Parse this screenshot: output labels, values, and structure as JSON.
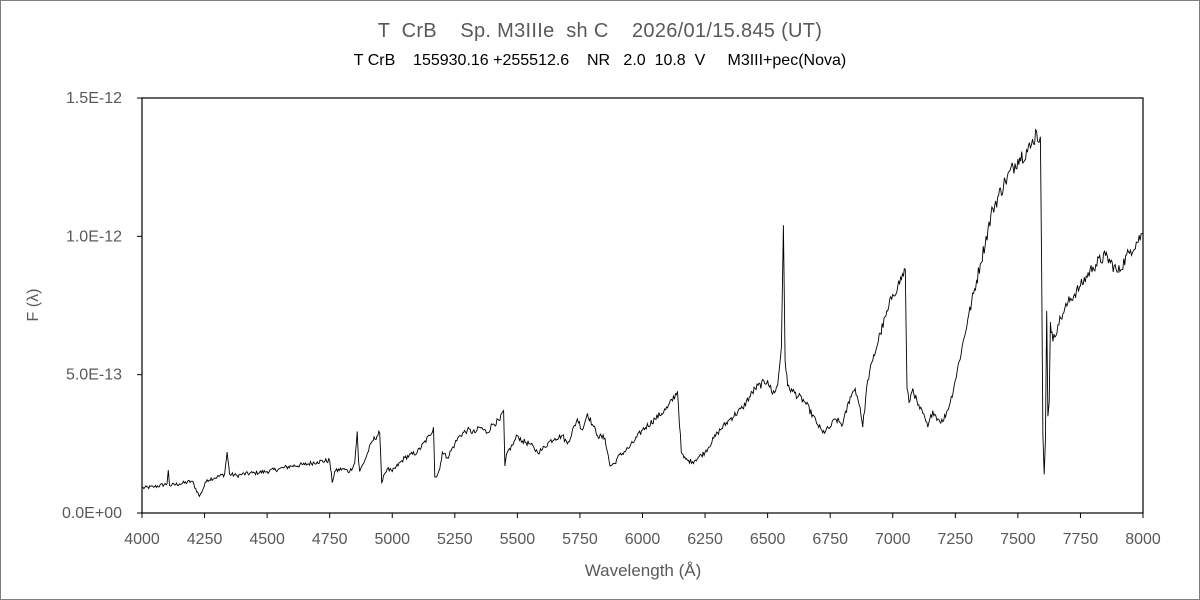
{
  "chart_data": {
    "type": "line",
    "title": "T  CrB    Sp. M3IIIe  sh C    2026/01/15.845 (UT)",
    "subtitle": "T CrB    155930.16 +255512.6    NR   2.0  10.8  V     M3III+pec(Nova)",
    "xlabel": "Wavelength (Å)",
    "ylabel": "F (λ)",
    "xlim": [
      4000,
      8000
    ],
    "ylim": [
      0,
      1.5e-12
    ],
    "x_ticks": [
      4000,
      4250,
      4500,
      4750,
      5000,
      5250,
      5500,
      5750,
      6000,
      6250,
      6500,
      6750,
      7000,
      7250,
      7500,
      7750,
      8000
    ],
    "x_tick_labels": [
      "4000",
      "4250",
      "4500",
      "4750",
      "5000",
      "5250",
      "5500",
      "5750",
      "6000",
      "6250",
      "6500",
      "6750",
      "7000",
      "7250",
      "7500",
      "7750",
      "8000"
    ],
    "y_ticks": [
      0,
      5e-13,
      1e-12,
      1.5e-12
    ],
    "y_tick_labels": [
      "0.0E+00",
      "5.0E-13",
      "1.0E-12",
      "1.5E-12"
    ],
    "grid": false,
    "legend": "none",
    "series": [
      {
        "color": "#000000",
        "x": [
          4000,
          4050,
          4100,
          4105,
          4110,
          4150,
          4200,
          4230,
          4260,
          4300,
          4330,
          4340,
          4350,
          4380,
          4400,
          4450,
          4500,
          4550,
          4600,
          4650,
          4700,
          4750,
          4760,
          4770,
          4800,
          4830,
          4850,
          4860,
          4865,
          4870,
          4890,
          4920,
          4950,
          4958,
          4965,
          4980,
          5000,
          5050,
          5100,
          5150,
          5165,
          5170,
          5175,
          5190,
          5200,
          5220,
          5250,
          5270,
          5300,
          5330,
          5350,
          5380,
          5400,
          5430,
          5445,
          5450,
          5460,
          5480,
          5500,
          5520,
          5550,
          5580,
          5600,
          5630,
          5650,
          5680,
          5700,
          5740,
          5760,
          5780,
          5800,
          5820,
          5850,
          5870,
          5890,
          5900,
          5950,
          6000,
          6050,
          6100,
          6140,
          6155,
          6165,
          6180,
          6200,
          6250,
          6300,
          6350,
          6400,
          6450,
          6500,
          6520,
          6540,
          6555,
          6563,
          6570,
          6580,
          6600,
          6650,
          6700,
          6720,
          6750,
          6770,
          6800,
          6830,
          6850,
          6870,
          6880,
          6900,
          6920,
          6950,
          6980,
          7000,
          7020,
          7050,
          7057,
          7065,
          7080,
          7100,
          7120,
          7140,
          7160,
          7180,
          7200,
          7230,
          7250,
          7300,
          7350,
          7400,
          7450,
          7500,
          7550,
          7575,
          7585,
          7590,
          7595,
          7600,
          7605,
          7610,
          7615,
          7620,
          7625,
          7630,
          7640,
          7660,
          7680,
          7700,
          7750,
          7800,
          7850,
          7900,
          7950,
          8000
        ],
        "y": [
          9e-14,
          9.5e-14,
          1.05e-13,
          1.55e-13,
          1e-13,
          1.05e-13,
          1.15e-13,
          6e-14,
          1.2e-13,
          1.3e-13,
          1.4e-13,
          2.2e-13,
          1.4e-13,
          1.35e-13,
          1.4e-13,
          1.45e-13,
          1.5e-13,
          1.6e-13,
          1.7e-13,
          1.75e-13,
          1.85e-13,
          1.9e-13,
          1.1e-13,
          1.5e-13,
          1.6e-13,
          1.5e-13,
          1.8e-13,
          2.95e-13,
          1.9e-13,
          1.5e-13,
          1.9e-13,
          2.6e-13,
          2.9e-13,
          1.1e-13,
          1.35e-13,
          1.6e-13,
          1.5e-13,
          2e-13,
          2.2e-13,
          2.8e-13,
          3.1e-13,
          1.3e-13,
          1.3e-13,
          1.6e-13,
          2.2e-13,
          2e-13,
          2.5e-13,
          2.8e-13,
          3e-13,
          2.9e-13,
          3.1e-13,
          2.9e-13,
          3.2e-13,
          3.35e-13,
          3.7e-13,
          1.7e-13,
          2.2e-13,
          2.45e-13,
          2.8e-13,
          2.6e-13,
          2.5e-13,
          2.2e-13,
          2.3e-13,
          2.6e-13,
          2.7e-13,
          2.8e-13,
          2.5e-13,
          3.4e-13,
          3e-13,
          3.6e-13,
          3.2e-13,
          2.8e-13,
          2.7e-13,
          1.7e-13,
          1.8e-13,
          2e-13,
          2.4e-13,
          3e-13,
          3.4e-13,
          3.8e-13,
          4.4e-13,
          2.2e-13,
          2e-13,
          1.9e-13,
          1.85e-13,
          2.2e-13,
          2.9e-13,
          3.4e-13,
          3.8e-13,
          4.5e-13,
          4.8e-13,
          4.3e-13,
          4.6e-13,
          6e-13,
          1.04e-12,
          5.5e-13,
          4.6e-13,
          4.4e-13,
          4e-13,
          3.2e-13,
          2.9e-13,
          3.1e-13,
          3.4e-13,
          3.2e-13,
          4.2e-13,
          4.5e-13,
          3.8e-13,
          3.1e-13,
          4.8e-13,
          5.5e-13,
          6.5e-13,
          7.3e-13,
          7.9e-13,
          8.2e-13,
          8.8e-13,
          4.5e-13,
          4e-13,
          4.5e-13,
          3.9e-13,
          3.6e-13,
          3.1e-13,
          3.7e-13,
          3.4e-13,
          3.3e-13,
          4e-13,
          4.8e-13,
          7e-13,
          9e-13,
          1.1e-12,
          1.2e-12,
          1.28e-12,
          1.32e-12,
          1.38e-12,
          1.34e-12,
          1.36e-12,
          9e-13,
          2.8e-13,
          1.4e-13,
          2.6e-13,
          7.3e-13,
          3.5e-13,
          4e-13,
          6.9e-13,
          6.2e-13,
          6.8e-13,
          7.2e-13,
          7.6e-13,
          8.2e-13,
          8.9e-13,
          9.3e-13,
          8.7e-13,
          9.5e-13,
          1.01e-12
        ]
      }
    ]
  }
}
